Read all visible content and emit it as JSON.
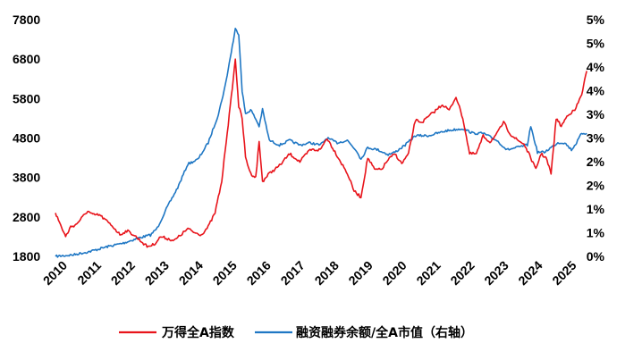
{
  "chart_data": {
    "type": "line",
    "title": "",
    "xlabel": "",
    "ylabel_left": "",
    "ylabel_right": "",
    "left_axis": {
      "ylim": [
        1800,
        7800
      ],
      "ticks": [
        "1800",
        "2800",
        "3800",
        "4800",
        "5800",
        "6800",
        "7800"
      ]
    },
    "right_axis": {
      "ylim": [
        0,
        0.05
      ],
      "ticks": [
        "0%",
        "1%",
        "1%",
        "2%",
        "2%",
        "3%",
        "3%",
        "4%",
        "4%",
        "5%",
        "5%"
      ]
    },
    "x_range": [
      2010.0,
      2025.75
    ],
    "x_ticks": [
      "2010",
      "2011",
      "2012",
      "2013",
      "2014",
      "2015",
      "2016",
      "2017",
      "2018",
      "2019",
      "2020",
      "2021",
      "2022",
      "2023",
      "2024",
      "2025"
    ],
    "grid": false,
    "legend_position": "bottom",
    "series": [
      {
        "name": "万得全A指数",
        "axis": "left",
        "color": "#e8141b",
        "x": [
          2010.0,
          2010.15,
          2010.3,
          2010.45,
          2010.6,
          2010.8,
          2010.95,
          2011.1,
          2011.3,
          2011.5,
          2011.7,
          2011.9,
          2012.1,
          2012.3,
          2012.5,
          2012.7,
          2012.9,
          2013.1,
          2013.3,
          2013.5,
          2013.7,
          2013.9,
          2014.1,
          2014.3,
          2014.5,
          2014.7,
          2014.9,
          2015.0,
          2015.15,
          2015.3,
          2015.4,
          2015.5,
          2015.6,
          2015.75,
          2015.9,
          2016.0,
          2016.1,
          2016.3,
          2016.6,
          2016.9,
          2017.2,
          2017.5,
          2017.8,
          2018.0,
          2018.2,
          2018.4,
          2018.6,
          2018.8,
          2019.0,
          2019.2,
          2019.4,
          2019.6,
          2019.8,
          2020.0,
          2020.2,
          2020.4,
          2020.6,
          2020.8,
          2021.0,
          2021.2,
          2021.4,
          2021.6,
          2021.8,
          2022.0,
          2022.2,
          2022.4,
          2022.6,
          2022.8,
          2023.0,
          2023.2,
          2023.4,
          2023.6,
          2023.8,
          2024.0,
          2024.15,
          2024.3,
          2024.45,
          2024.6,
          2024.75,
          2024.9,
          2025.1,
          2025.3,
          2025.5,
          2025.65
        ],
        "values": [
          2900,
          2600,
          2300,
          2550,
          2600,
          2800,
          2950,
          2850,
          2850,
          2700,
          2550,
          2350,
          2450,
          2350,
          2200,
          2050,
          2100,
          2300,
          2250,
          2200,
          2350,
          2500,
          2400,
          2350,
          2550,
          2900,
          3700,
          4500,
          5600,
          6800,
          5600,
          5300,
          4300,
          3900,
          3800,
          4700,
          3700,
          3900,
          4100,
          4400,
          4200,
          4500,
          4500,
          4800,
          4500,
          4200,
          3900,
          3450,
          3300,
          4300,
          4000,
          4000,
          4250,
          4400,
          4150,
          4400,
          5250,
          5200,
          5350,
          5500,
          5650,
          5500,
          5850,
          5300,
          4400,
          4400,
          4850,
          4700,
          4900,
          5200,
          4900,
          4750,
          4650,
          4300,
          4000,
          4400,
          4300,
          3900,
          5300,
          5100,
          5400,
          5500,
          5900,
          6500
        ]
      },
      {
        "name": "融资融券余额/全A市值（右轴）",
        "axis": "right",
        "color": "#1f77c4",
        "x": [
          2010.0,
          2010.5,
          2011.0,
          2011.5,
          2012.0,
          2012.5,
          2012.8,
          2013.0,
          2013.3,
          2013.6,
          2013.9,
          2014.2,
          2014.5,
          2014.8,
          2015.0,
          2015.15,
          2015.3,
          2015.4,
          2015.5,
          2015.6,
          2015.75,
          2015.9,
          2016.0,
          2016.1,
          2016.3,
          2016.6,
          2016.9,
          2017.2,
          2017.5,
          2017.8,
          2018.0,
          2018.3,
          2018.6,
          2018.9,
          2019.0,
          2019.2,
          2019.5,
          2019.8,
          2020.0,
          2020.3,
          2020.6,
          2021.0,
          2021.5,
          2022.0,
          2022.3,
          2022.6,
          2023.0,
          2023.3,
          2023.6,
          2023.9,
          2024.0,
          2024.2,
          2024.4,
          2024.6,
          2024.8,
          2025.0,
          2025.2,
          2025.35,
          2025.5,
          2025.65
        ],
        "values": [
          0.0,
          0.0003,
          0.001,
          0.002,
          0.0028,
          0.004,
          0.0045,
          0.006,
          0.0105,
          0.0145,
          0.0195,
          0.0205,
          0.024,
          0.03,
          0.036,
          0.042,
          0.048,
          0.047,
          0.035,
          0.03,
          0.031,
          0.029,
          0.0275,
          0.031,
          0.0245,
          0.0235,
          0.0245,
          0.0235,
          0.024,
          0.0235,
          0.025,
          0.024,
          0.0245,
          0.022,
          0.0205,
          0.023,
          0.0225,
          0.0215,
          0.022,
          0.0235,
          0.0255,
          0.0255,
          0.0265,
          0.027,
          0.026,
          0.026,
          0.0245,
          0.0225,
          0.023,
          0.0235,
          0.0275,
          0.022,
          0.022,
          0.023,
          0.024,
          0.024,
          0.0225,
          0.024,
          0.026,
          0.026
        ]
      }
    ]
  }
}
